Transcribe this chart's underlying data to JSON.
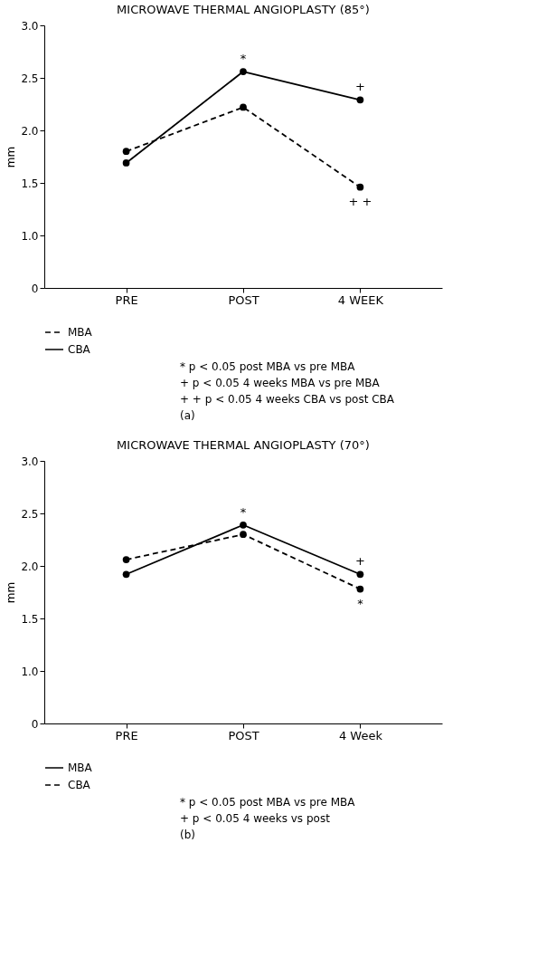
{
  "chart_data": [
    {
      "type": "line",
      "title": "MICROWAVE THERMAL ANGIOPLASTY (85°)",
      "ylabel": "mm",
      "categories": [
        "PRE",
        "POST",
        "4 WEEK"
      ],
      "series": [
        {
          "name": "MBA",
          "color": "#000000",
          "line_style": "dashed",
          "values": [
            1.8,
            2.22,
            1.46
          ]
        },
        {
          "name": "CBA",
          "color": "#000000",
          "line_style": "solid",
          "values": [
            1.69,
            2.56,
            2.29
          ]
        }
      ],
      "ylim": [
        0.5,
        3.0
      ],
      "yticks": [
        {
          "value": 0.5,
          "label": "0"
        },
        {
          "value": 1.0,
          "label": "1.0"
        },
        {
          "value": 1.5,
          "label": "1.5"
        },
        {
          "value": 2.0,
          "label": "2.0"
        },
        {
          "value": 2.5,
          "label": "2.5"
        },
        {
          "value": 3.0,
          "label": "3.0"
        }
      ],
      "marker": "circle",
      "grid": false,
      "legend": "bottom left",
      "annotations": [
        {
          "text": "*",
          "x": "POST",
          "y": 2.56
        },
        {
          "text": "+",
          "x": "4 WEEK",
          "y": 2.29
        },
        {
          "text": "+ +",
          "x": "4 WEEK",
          "y": 1.46
        },
        "* p < 0.05 post MBA vs pre MBA",
        "+ p < 0.05 4 weeks MBA vs pre MBA",
        "+ + p < 0.05 4 weeks CBA vs post CBA",
        "(a)"
      ]
    },
    {
      "type": "line",
      "title": "MICROWAVE THERMAL ANGIOPLASTY (70°)",
      "ylabel": "mm",
      "categories": [
        "PRE",
        "POST",
        "4 Week"
      ],
      "series": [
        {
          "name": "MBA",
          "color": "#000000",
          "line_style": "solid",
          "values": [
            1.92,
            2.39,
            1.92
          ]
        },
        {
          "name": "CBA",
          "color": "#000000",
          "line_style": "dashed",
          "values": [
            2.06,
            2.3,
            1.78
          ]
        }
      ],
      "ylim": [
        0.5,
        3.0
      ],
      "yticks": [
        {
          "value": 0.5,
          "label": "0"
        },
        {
          "value": 1.0,
          "label": "1.0"
        },
        {
          "value": 1.5,
          "label": "1.5"
        },
        {
          "value": 2.0,
          "label": "2.0"
        },
        {
          "value": 2.5,
          "label": "2.5"
        },
        {
          "value": 3.0,
          "label": "3.0"
        }
      ],
      "marker": "circle",
      "grid": false,
      "legend": "bottom left",
      "annotations": [
        {
          "text": "*",
          "x": "POST",
          "y": 2.39
        },
        {
          "text": "+",
          "x": "4 Week",
          "y": 1.92
        },
        {
          "text": "*",
          "x": "4 Week",
          "y": 1.78
        },
        "* p < 0.05 post MBA vs pre MBA",
        "+ p < 0.05 4 weeks vs post",
        "(b)"
      ]
    }
  ]
}
